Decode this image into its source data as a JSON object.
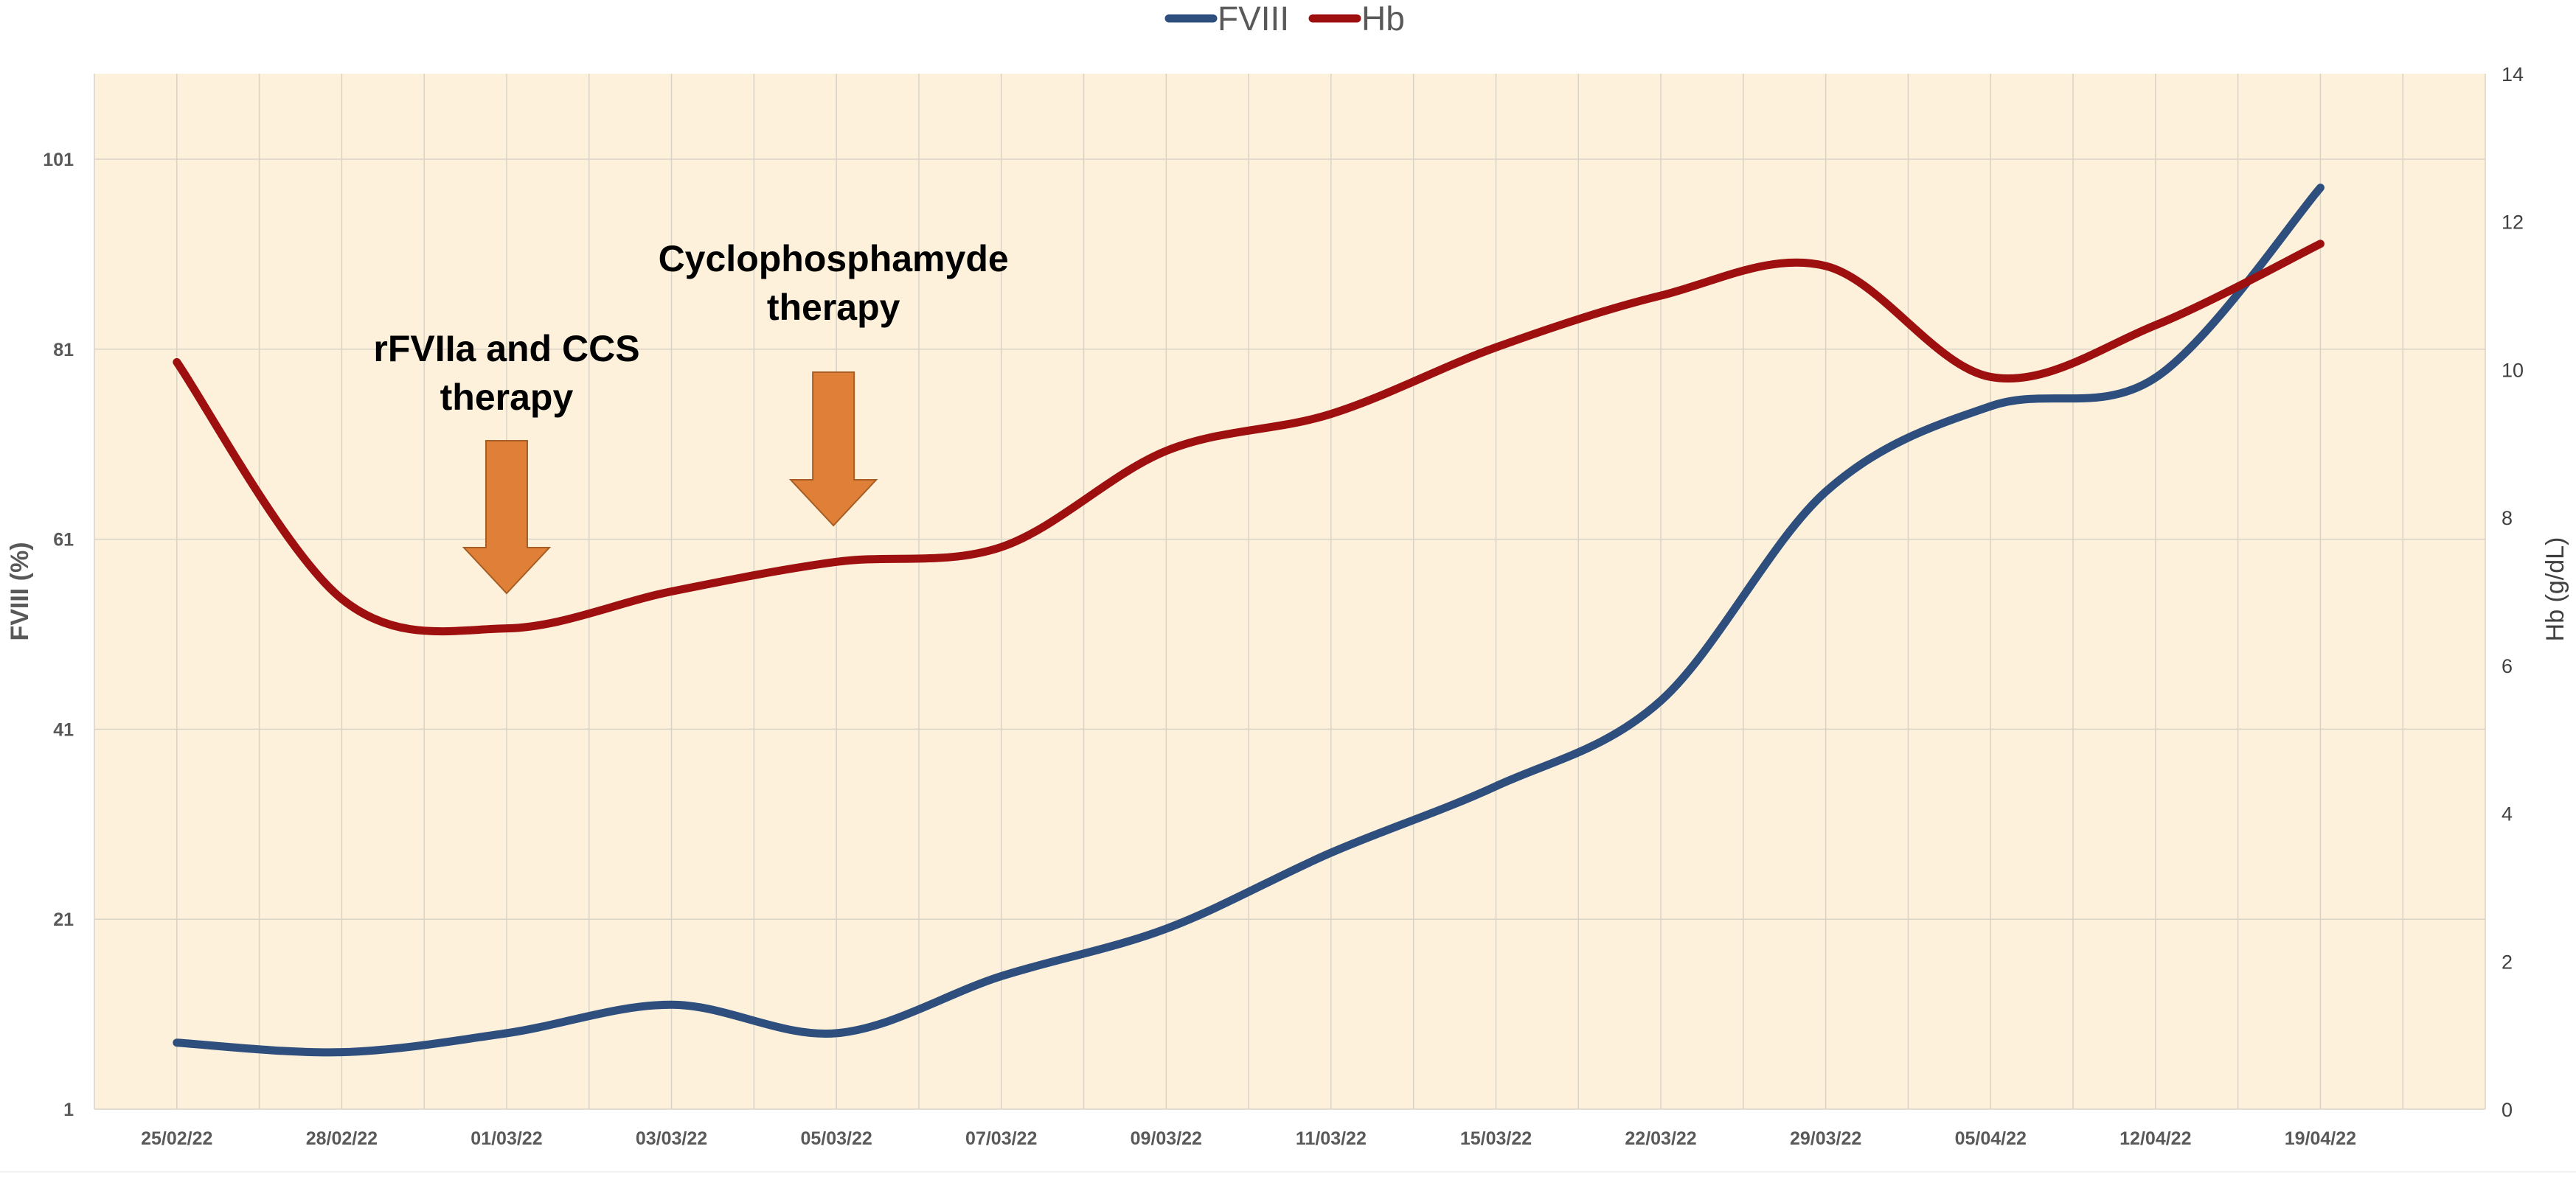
{
  "chart_data": {
    "type": "line",
    "x": [
      "25/02/22",
      "28/02/22",
      "01/03/22",
      "03/03/22",
      "05/03/22",
      "07/03/22",
      "09/03/22",
      "11/03/22",
      "15/03/22",
      "22/03/22",
      "29/03/22",
      "05/04/22",
      "12/04/22",
      "19/04/22"
    ],
    "series": [
      {
        "name": "FVIII",
        "axis": "left",
        "color": "#2E4E7E",
        "values": [
          8,
          7,
          9,
          12,
          9,
          15,
          20,
          28,
          35,
          44,
          66,
          75,
          78,
          98
        ]
      },
      {
        "name": "Hb",
        "axis": "right",
        "color": "#9E0F0F",
        "values": [
          10.1,
          6.9,
          6.5,
          7.0,
          7.4,
          7.6,
          8.9,
          9.4,
          10.3,
          11.0,
          11.4,
          9.9,
          10.6,
          11.7
        ]
      }
    ],
    "ylabel": "FVIII (%)",
    "y2label": "Hb (g/dL)",
    "ylim": [
      1,
      110
    ],
    "y2lim": [
      0,
      14
    ],
    "yticks": [
      "1",
      "21",
      "41",
      "61",
      "81",
      "101"
    ],
    "y2ticks": [
      "0",
      "2",
      "4",
      "6",
      "8",
      "10",
      "12",
      "14"
    ],
    "grid": true,
    "legend": "top-center",
    "annotations": [
      {
        "lines": [
          "rFVIIa and CCS",
          "therapy"
        ],
        "x_category": "01/03/22",
        "arrow": true
      },
      {
        "lines": [
          "Cyclophosphamyde",
          "therapy"
        ],
        "x_category": "05/03/22",
        "arrow": true
      }
    ],
    "colors": {
      "plot_background": "#FDF1DC",
      "arrow_fill": "#E07F37",
      "arrow_stroke": "#A65E24",
      "grid": "#D9D3C6"
    }
  }
}
